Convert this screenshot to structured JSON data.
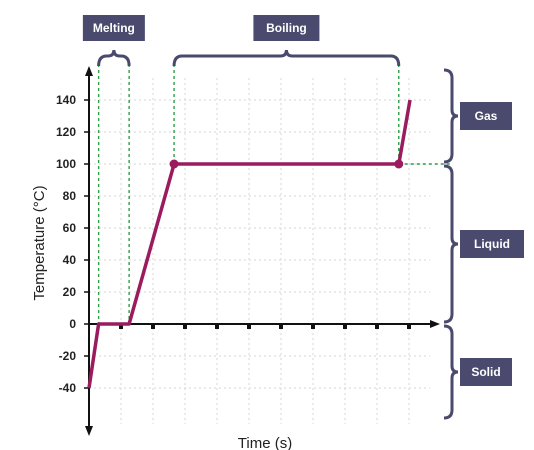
{
  "chart_data": {
    "type": "line",
    "xlabel": "Time (s)",
    "ylabel": "Temperature (°C)",
    "ylim": [
      -60,
      160
    ],
    "yticks": [
      -40,
      -20,
      0,
      20,
      40,
      60,
      80,
      100,
      120,
      140
    ],
    "x_tick_count": 10,
    "grid": true,
    "series": [
      {
        "color": "#9b1c5e",
        "points": [
          {
            "x": 0.0,
            "y": -40
          },
          {
            "x": 0.3,
            "y": 0
          },
          {
            "x": 1.25,
            "y": 0
          },
          {
            "x": 2.65,
            "y": 100
          },
          {
            "x": 9.65,
            "y": 100
          },
          {
            "x": 10.0,
            "y": 140
          }
        ]
      }
    ],
    "markers": [
      {
        "x": 2.65,
        "y": 100
      },
      {
        "x": 9.65,
        "y": 100
      }
    ],
    "top_annotations": [
      {
        "label": "Melting",
        "x_start": 0.3,
        "x_end": 1.25
      },
      {
        "label": "Boiling",
        "x_start": 2.65,
        "x_end": 9.65
      }
    ],
    "side_annotations": [
      {
        "label": "Gas",
        "y_from": 100,
        "y_to": 160
      },
      {
        "label": "Liquid",
        "y_from": 0,
        "y_to": 100
      },
      {
        "label": "Solid",
        "y_from": -60,
        "y_to": 0
      }
    ],
    "colors": {
      "line": "#9b1c5e",
      "guide": "#2e9e47",
      "label_box": "#4a4a6e",
      "bracket": "#4a4a6e",
      "grid": "#d4d4d4",
      "axis": "#111111"
    }
  }
}
